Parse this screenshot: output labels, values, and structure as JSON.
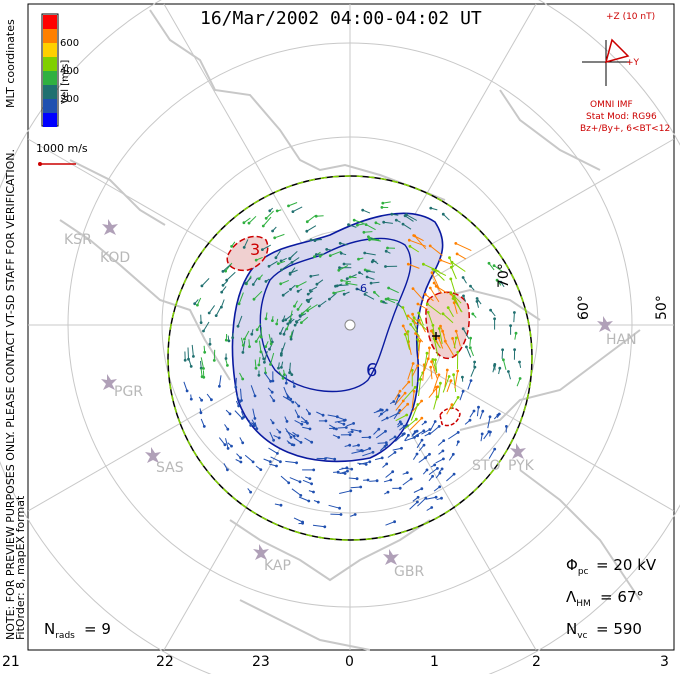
{
  "title": "16/Mar/2002 04:00-04:02 UT",
  "colorbar": {
    "label": "Vel [m/s]",
    "ticks": [
      "600",
      "400",
      "200"
    ],
    "colors": [
      "#ff0000",
      "#ff8000",
      "#ffd000",
      "#80d000",
      "#30b040",
      "#207070",
      "#2050b0",
      "#0000ff"
    ]
  },
  "coords_label": "MLT coordinates",
  "scale_vector": "1000 m/s",
  "side_note": "NOTE: FOR PREVIEW PURPOSES ONLY. PLEASE CONTACT VT-SD STAFF FOR VERIFICATION.",
  "fit_note": "FitOrder: 8, mapEX format",
  "imf": {
    "title": "OMNI IMF",
    "axis_z": "+Z (10 nT)",
    "axis_y": "+Y",
    "model": "Stat Mod: RG96",
    "condition": "Bz+/By+, 6<BT<12"
  },
  "latitude_labels": [
    "70°",
    "60°",
    "50°"
  ],
  "stations": [
    "KSR",
    "KOD",
    "PGR",
    "SAS",
    "KAP",
    "GBR",
    "STO",
    "PYK",
    "HAN"
  ],
  "contour_labels": [
    "3",
    "-6",
    "6"
  ],
  "stats": {
    "phi_pc": "= 20 kV",
    "lambda_hm": "= 67°",
    "n_vc": "= 590",
    "n_rads": "= 9"
  },
  "mlt_ticks": [
    "21",
    "22",
    "23",
    "0",
    "1",
    "2",
    "3"
  ],
  "colors": {
    "contour": "#0000aa",
    "negative_contour": "#cc0000",
    "boundary": "#000000",
    "boundary_dash": "#80d000",
    "land": "#c8c8c8",
    "grid": "#c8c8c8"
  }
}
